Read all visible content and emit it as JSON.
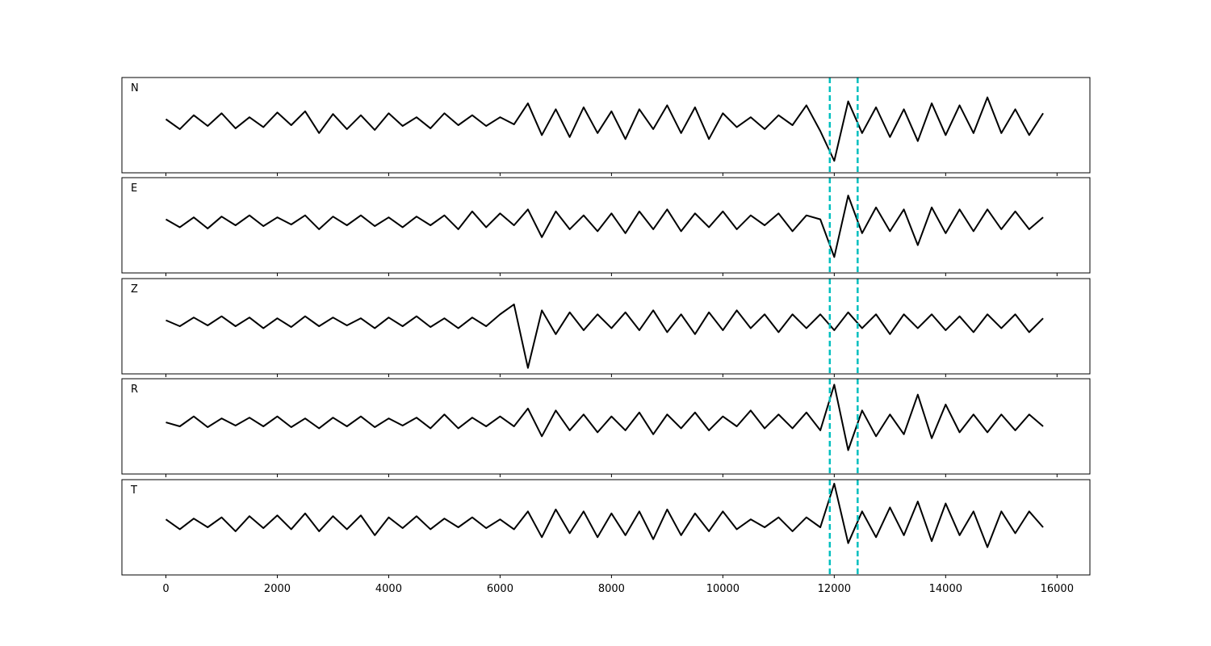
{
  "chart_data": [
    {
      "type": "line",
      "label": "N",
      "color": "#000000",
      "vline_color": "#00bfbf",
      "vlines": [
        11920,
        12420
      ],
      "xlim": [
        -790,
        16590
      ],
      "ylim": [
        -1.3,
        1.1
      ],
      "x": [
        0,
        250,
        500,
        750,
        1000,
        1250,
        1500,
        1750,
        2000,
        2250,
        2500,
        2750,
        3000,
        3250,
        3500,
        3750,
        4000,
        4250,
        4500,
        4750,
        5000,
        5250,
        5500,
        5750,
        6000,
        6250,
        6500,
        6750,
        7000,
        7250,
        7500,
        7750,
        8000,
        8250,
        8500,
        8750,
        9000,
        9250,
        9500,
        9750,
        10000,
        10250,
        10500,
        10750,
        11000,
        11250,
        11500,
        11750,
        12000,
        12250,
        12500,
        12750,
        13000,
        13250,
        13500,
        13750,
        14000,
        14250,
        14500,
        14750,
        15000,
        15250,
        15500,
        15750
      ],
      "values": [
        0.05,
        -0.2,
        0.15,
        -0.12,
        0.2,
        -0.18,
        0.1,
        -0.15,
        0.22,
        -0.1,
        0.25,
        -0.3,
        0.18,
        -0.2,
        0.15,
        -0.22,
        0.2,
        -0.12,
        0.1,
        -0.18,
        0.2,
        -0.1,
        0.15,
        -0.12,
        0.1,
        -0.08,
        0.45,
        -0.35,
        0.3,
        -0.4,
        0.35,
        -0.3,
        0.25,
        -0.45,
        0.3,
        -0.2,
        0.4,
        -0.3,
        0.35,
        -0.45,
        0.2,
        -0.15,
        0.1,
        -0.2,
        0.15,
        -0.1,
        0.4,
        -0.25,
        -1.0,
        0.5,
        -0.3,
        0.35,
        -0.4,
        0.3,
        -0.5,
        0.45,
        -0.35,
        0.4,
        -0.3,
        0.6,
        -0.3,
        0.3,
        -0.35,
        0.2
      ]
    },
    {
      "type": "line",
      "label": "E",
      "color": "#000000",
      "vline_color": "#00bfbf",
      "vlines": [
        11920,
        12420
      ],
      "xlim": [
        -790,
        16590
      ],
      "ylim": [
        -1.3,
        1.1
      ],
      "x": [
        0,
        250,
        500,
        750,
        1000,
        1250,
        1500,
        1750,
        2000,
        2250,
        2500,
        2750,
        3000,
        3250,
        3500,
        3750,
        4000,
        4250,
        4500,
        4750,
        5000,
        5250,
        5500,
        5750,
        6000,
        6250,
        6500,
        6750,
        7000,
        7250,
        7500,
        7750,
        8000,
        8250,
        8500,
        8750,
        9000,
        9250,
        9500,
        9750,
        10000,
        10250,
        10500,
        10750,
        11000,
        11250,
        11500,
        11750,
        12000,
        12250,
        12500,
        12750,
        13000,
        13250,
        13500,
        13750,
        14000,
        14250,
        14500,
        14750,
        15000,
        15250,
        15500,
        15750
      ],
      "values": [
        0.05,
        -0.15,
        0.1,
        -0.18,
        0.12,
        -0.1,
        0.15,
        -0.12,
        0.1,
        -0.08,
        0.15,
        -0.2,
        0.12,
        -0.1,
        0.15,
        -0.12,
        0.1,
        -0.15,
        0.12,
        -0.1,
        0.15,
        -0.2,
        0.25,
        -0.15,
        0.2,
        -0.1,
        0.3,
        -0.4,
        0.25,
        -0.2,
        0.15,
        -0.25,
        0.2,
        -0.3,
        0.25,
        -0.2,
        0.3,
        -0.25,
        0.2,
        -0.15,
        0.25,
        -0.2,
        0.15,
        -0.1,
        0.2,
        -0.25,
        0.15,
        0.05,
        -0.9,
        0.65,
        -0.3,
        0.35,
        -0.25,
        0.3,
        -0.6,
        0.35,
        -0.3,
        0.3,
        -0.25,
        0.3,
        -0.2,
        0.25,
        -0.2,
        0.1
      ]
    },
    {
      "type": "line",
      "label": "Z",
      "color": "#000000",
      "vline_color": "#00bfbf",
      "vlines": [
        11920,
        12420
      ],
      "xlim": [
        -790,
        16590
      ],
      "ylim": [
        -1.3,
        1.1
      ],
      "x": [
        0,
        250,
        500,
        750,
        1000,
        1250,
        1500,
        1750,
        2000,
        2250,
        2500,
        2750,
        3000,
        3250,
        3500,
        3750,
        4000,
        4250,
        4500,
        4750,
        5000,
        5250,
        5500,
        5750,
        6000,
        6250,
        6500,
        6750,
        7000,
        7250,
        7500,
        7750,
        8000,
        8250,
        8500,
        8750,
        9000,
        9250,
        9500,
        9750,
        10000,
        10250,
        10500,
        10750,
        11000,
        11250,
        11500,
        11750,
        12000,
        12250,
        12500,
        12750,
        13000,
        13250,
        13500,
        13750,
        14000,
        14250,
        14500,
        14750,
        15000,
        15250,
        15500,
        15750
      ],
      "values": [
        0.05,
        -0.1,
        0.12,
        -0.08,
        0.15,
        -0.1,
        0.12,
        -0.15,
        0.1,
        -0.12,
        0.15,
        -0.1,
        0.12,
        -0.08,
        0.1,
        -0.15,
        0.12,
        -0.1,
        0.15,
        -0.12,
        0.1,
        -0.15,
        0.12,
        -0.1,
        0.2,
        0.45,
        -1.15,
        0.3,
        -0.3,
        0.25,
        -0.2,
        0.2,
        -0.15,
        0.25,
        -0.2,
        0.3,
        -0.25,
        0.2,
        -0.3,
        0.25,
        -0.2,
        0.3,
        -0.15,
        0.2,
        -0.25,
        0.2,
        -0.15,
        0.2,
        -0.2,
        0.25,
        -0.15,
        0.2,
        -0.3,
        0.2,
        -0.15,
        0.2,
        -0.2,
        0.15,
        -0.25,
        0.2,
        -0.15,
        0.2,
        -0.25,
        0.1
      ]
    },
    {
      "type": "line",
      "label": "R",
      "color": "#000000",
      "vline_color": "#00bfbf",
      "vlines": [
        11920,
        12420
      ],
      "xlim": [
        -790,
        16590
      ],
      "ylim": [
        -1.3,
        1.1
      ],
      "x": [
        0,
        250,
        500,
        750,
        1000,
        1250,
        1500,
        1750,
        2000,
        2250,
        2500,
        2750,
        3000,
        3250,
        3500,
        3750,
        4000,
        4250,
        4500,
        4750,
        5000,
        5250,
        5500,
        5750,
        6000,
        6250,
        6500,
        6750,
        7000,
        7250,
        7500,
        7750,
        8000,
        8250,
        8500,
        8750,
        9000,
        9250,
        9500,
        9750,
        10000,
        10250,
        10500,
        10750,
        11000,
        11250,
        11500,
        11750,
        12000,
        12250,
        12500,
        12750,
        13000,
        13250,
        13500,
        13750,
        14000,
        14250,
        14500,
        14750,
        15000,
        15250,
        15500,
        15750
      ],
      "values": [
        0.0,
        -0.1,
        0.15,
        -0.12,
        0.1,
        -0.08,
        0.12,
        -0.1,
        0.15,
        -0.12,
        0.1,
        -0.15,
        0.12,
        -0.1,
        0.15,
        -0.12,
        0.1,
        -0.08,
        0.12,
        -0.15,
        0.2,
        -0.15,
        0.12,
        -0.1,
        0.15,
        -0.1,
        0.35,
        -0.35,
        0.3,
        -0.2,
        0.2,
        -0.25,
        0.15,
        -0.2,
        0.25,
        -0.3,
        0.2,
        -0.15,
        0.25,
        -0.2,
        0.15,
        -0.1,
        0.3,
        -0.15,
        0.2,
        -0.15,
        0.25,
        -0.2,
        0.95,
        -0.7,
        0.3,
        -0.35,
        0.2,
        -0.3,
        0.7,
        -0.4,
        0.45,
        -0.25,
        0.2,
        -0.25,
        0.2,
        -0.2,
        0.2,
        -0.1
      ]
    },
    {
      "type": "line",
      "label": "T",
      "color": "#000000",
      "vline_color": "#00bfbf",
      "vlines": [
        11920,
        12420
      ],
      "xlim": [
        -790,
        16590
      ],
      "ylim": [
        -1.3,
        1.1
      ],
      "xticks": [
        0,
        2000,
        4000,
        6000,
        8000,
        10000,
        12000,
        14000,
        16000
      ],
      "x": [
        0,
        250,
        500,
        750,
        1000,
        1250,
        1500,
        1750,
        2000,
        2250,
        2500,
        2750,
        3000,
        3250,
        3500,
        3750,
        4000,
        4250,
        4500,
        4750,
        5000,
        5250,
        5500,
        5750,
        6000,
        6250,
        6500,
        6750,
        7000,
        7250,
        7500,
        7750,
        8000,
        8250,
        8500,
        8750,
        9000,
        9250,
        9500,
        9750,
        10000,
        10250,
        10500,
        10750,
        11000,
        11250,
        11500,
        11750,
        12000,
        12250,
        12500,
        12750,
        13000,
        13250,
        13500,
        13750,
        14000,
        14250,
        14500,
        14750,
        15000,
        15250,
        15500,
        15750
      ],
      "values": [
        0.1,
        -0.15,
        0.12,
        -0.1,
        0.15,
        -0.2,
        0.18,
        -0.12,
        0.2,
        -0.15,
        0.25,
        -0.2,
        0.18,
        -0.15,
        0.2,
        -0.3,
        0.15,
        -0.12,
        0.18,
        -0.15,
        0.12,
        -0.1,
        0.15,
        -0.12,
        0.1,
        -0.15,
        0.3,
        -0.35,
        0.35,
        -0.25,
        0.3,
        -0.35,
        0.25,
        -0.3,
        0.3,
        -0.4,
        0.35,
        -0.3,
        0.25,
        -0.2,
        0.3,
        -0.15,
        0.1,
        -0.1,
        0.15,
        -0.2,
        0.15,
        -0.1,
        1.0,
        -0.5,
        0.3,
        -0.35,
        0.4,
        -0.3,
        0.55,
        -0.45,
        0.5,
        -0.3,
        0.3,
        -0.6,
        0.3,
        -0.25,
        0.3,
        -0.1
      ]
    }
  ]
}
